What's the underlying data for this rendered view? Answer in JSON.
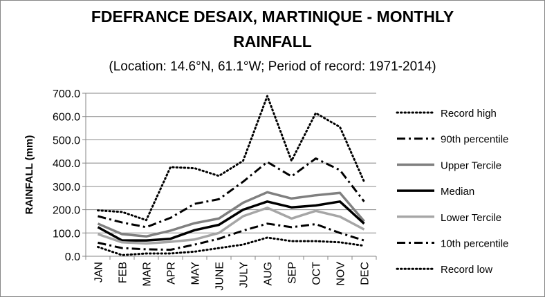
{
  "chart_data": {
    "type": "line",
    "title_lines": [
      "FDEFRANCE DESAIX, MARTINIQUE - MONTHLY",
      "RAINFALL"
    ],
    "subtitle": "(Location: 14.6°N, 61.1°W; Period of record: 1971-2014)",
    "xlabel": "",
    "ylabel": "RAINFALL (mm)",
    "categories": [
      "JAN",
      "FEB",
      "MAR",
      "APR",
      "MAY",
      "JUNE",
      "JULY",
      "AUG",
      "SEP",
      "OCT",
      "NOV",
      "DEC"
    ],
    "ylim": [
      0,
      700
    ],
    "yticks": [
      "0.0",
      "100.0",
      "200.0",
      "300.0",
      "400.0",
      "500.0",
      "600.0",
      "700.0"
    ],
    "grid": "horizontal",
    "legend_position": "right",
    "series": [
      {
        "name": "Record high",
        "style": "dotted",
        "color": "#000000",
        "values": [
          197,
          190,
          155,
          383,
          378,
          345,
          410,
          688,
          410,
          615,
          555,
          320
        ]
      },
      {
        "name": "90th percentile",
        "style": "dashdot",
        "color": "#000000",
        "values": [
          172,
          145,
          125,
          165,
          225,
          245,
          320,
          405,
          343,
          420,
          370,
          235
        ]
      },
      {
        "name": "Upper Tercile",
        "style": "solid",
        "color": "#808080",
        "values": [
          140,
          95,
          85,
          110,
          142,
          162,
          230,
          275,
          248,
          262,
          272,
          150
        ]
      },
      {
        "name": "Median",
        "style": "solid",
        "color": "#000000",
        "values": [
          125,
          68,
          68,
          75,
          112,
          135,
          200,
          235,
          210,
          218,
          235,
          140
        ]
      },
      {
        "name": "Lower Tercile",
        "style": "solid",
        "color": "#a6a6a6",
        "values": [
          95,
          60,
          55,
          62,
          72,
          100,
          172,
          208,
          162,
          195,
          170,
          115
        ]
      },
      {
        "name": "10th percentile",
        "style": "dashdot",
        "color": "#000000",
        "values": [
          58,
          35,
          30,
          28,
          50,
          75,
          110,
          140,
          125,
          138,
          100,
          68
        ]
      },
      {
        "name": "Record low",
        "style": "dotted",
        "color": "#000000",
        "values": [
          40,
          5,
          12,
          12,
          20,
          35,
          50,
          80,
          65,
          65,
          60,
          45
        ]
      }
    ]
  }
}
